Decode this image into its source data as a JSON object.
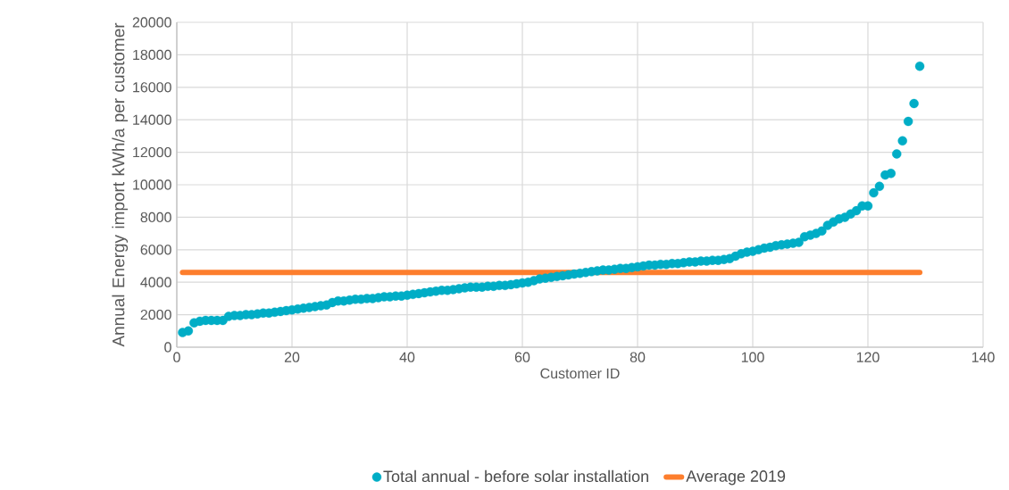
{
  "chart_data": {
    "type": "scatter",
    "xlabel": "Customer ID",
    "ylabel": "Annual Energy import kWh/a per customer",
    "xlim": [
      0,
      140
    ],
    "xticks": [
      0,
      20,
      40,
      60,
      80,
      100,
      120,
      140
    ],
    "ylim": [
      0,
      20000
    ],
    "yticks": [
      0,
      2000,
      4000,
      6000,
      8000,
      10000,
      12000,
      14000,
      16000,
      18000,
      20000
    ],
    "grid": true,
    "legend": "bottom",
    "series": [
      {
        "name": "Total annual - before solar installation",
        "marker": "circle",
        "color": "#00adc6",
        "x": [
          1,
          2,
          3,
          4,
          5,
          6,
          7,
          8,
          9,
          10,
          11,
          12,
          13,
          14,
          15,
          16,
          17,
          18,
          19,
          20,
          21,
          22,
          23,
          24,
          25,
          26,
          27,
          28,
          29,
          30,
          31,
          32,
          33,
          34,
          35,
          36,
          37,
          38,
          39,
          40,
          41,
          42,
          43,
          44,
          45,
          46,
          47,
          48,
          49,
          50,
          51,
          52,
          53,
          54,
          55,
          56,
          57,
          58,
          59,
          60,
          61,
          62,
          63,
          64,
          65,
          66,
          67,
          68,
          69,
          70,
          71,
          72,
          73,
          74,
          75,
          76,
          77,
          78,
          79,
          80,
          81,
          82,
          83,
          84,
          85,
          86,
          87,
          88,
          89,
          90,
          91,
          92,
          93,
          94,
          95,
          96,
          97,
          98,
          99,
          100,
          101,
          102,
          103,
          104,
          105,
          106,
          107,
          108,
          109,
          110,
          111,
          112,
          113,
          114,
          115,
          116,
          117,
          118,
          119,
          120,
          121,
          122,
          123,
          124,
          125,
          126,
          127,
          128,
          129
        ],
        "values": [
          900,
          1000,
          1500,
          1600,
          1650,
          1650,
          1650,
          1650,
          1900,
          1950,
          1950,
          2000,
          2000,
          2050,
          2100,
          2100,
          2150,
          2200,
          2250,
          2300,
          2350,
          2400,
          2450,
          2500,
          2550,
          2600,
          2750,
          2850,
          2850,
          2900,
          2950,
          2950,
          3000,
          3000,
          3050,
          3100,
          3100,
          3150,
          3150,
          3200,
          3250,
          3300,
          3350,
          3400,
          3450,
          3500,
          3500,
          3550,
          3600,
          3650,
          3700,
          3700,
          3700,
          3750,
          3750,
          3800,
          3800,
          3850,
          3900,
          3950,
          4000,
          4100,
          4200,
          4250,
          4300,
          4350,
          4400,
          4450,
          4500,
          4550,
          4600,
          4650,
          4700,
          4750,
          4750,
          4800,
          4850,
          4850,
          4900,
          4950,
          5000,
          5050,
          5050,
          5100,
          5100,
          5150,
          5150,
          5200,
          5250,
          5250,
          5300,
          5300,
          5350,
          5350,
          5400,
          5450,
          5600,
          5750,
          5850,
          5900,
          6000,
          6100,
          6150,
          6250,
          6300,
          6350,
          6400,
          6450,
          6800,
          6900,
          7000,
          7150,
          7500,
          7700,
          7900,
          8000,
          8200,
          8400,
          8700,
          8700,
          9500,
          9900,
          10600,
          10700,
          11900,
          12700,
          13900,
          15000,
          17300
        ]
      },
      {
        "name": "Average 2019",
        "type": "line",
        "marker": "none",
        "line_style": "solid",
        "color": "#fd7e2d",
        "x": [
          1,
          129
        ],
        "values": [
          4600,
          4600
        ]
      }
    ]
  }
}
